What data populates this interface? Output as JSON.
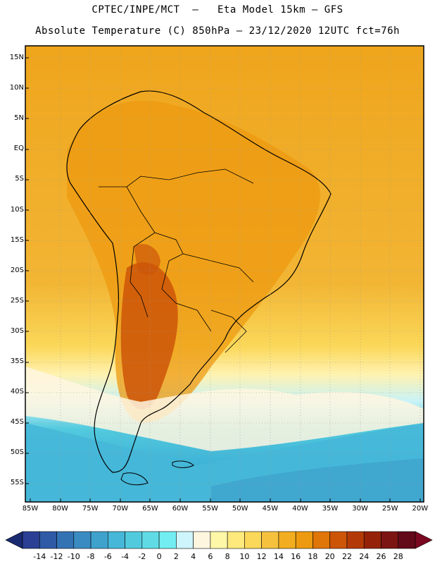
{
  "title_line1": "CPTEC/INPE/MCT  —   Eta Model 15km — GFS",
  "title_line2": "Absolute Temperature (C) 850hPa — 23/12/2020 12UTC fct=76h",
  "lat_labels": [
    "15N",
    "10N",
    "5N",
    "EQ",
    "5S",
    "10S",
    "15S",
    "20S",
    "25S",
    "30S",
    "35S",
    "40S",
    "45S",
    "50S",
    "55S"
  ],
  "lon_labels": [
    "85W",
    "80W",
    "75W",
    "70W",
    "65W",
    "60W",
    "55W",
    "50W",
    "45W",
    "40W",
    "35W",
    "30W",
    "25W",
    "20W"
  ],
  "colorbar": {
    "labels": [
      "-14",
      "-12",
      "-10",
      "-8",
      "-6",
      "-4",
      "-2",
      "0",
      "2",
      "4",
      "6",
      "8",
      "10",
      "12",
      "14",
      "16",
      "18",
      "20",
      "22",
      "24",
      "26",
      "28"
    ],
    "colors": [
      "#2b3f94",
      "#2f5aa6",
      "#3373b4",
      "#3a8bc2",
      "#3fa2cd",
      "#46b7d8",
      "#52cade",
      "#60dbe6",
      "#72eef2",
      "#cdf5fb",
      "#fff6e0",
      "#fff7a8",
      "#fde97c",
      "#fbd85a",
      "#f6c23e",
      "#f2ae20",
      "#ee9a10",
      "#e0760a",
      "#cc5508",
      "#b33a08",
      "#952208",
      "#7d1414",
      "#620a1a"
    ],
    "under_color": "#1a2a70",
    "over_color": "#7a0820"
  }
}
